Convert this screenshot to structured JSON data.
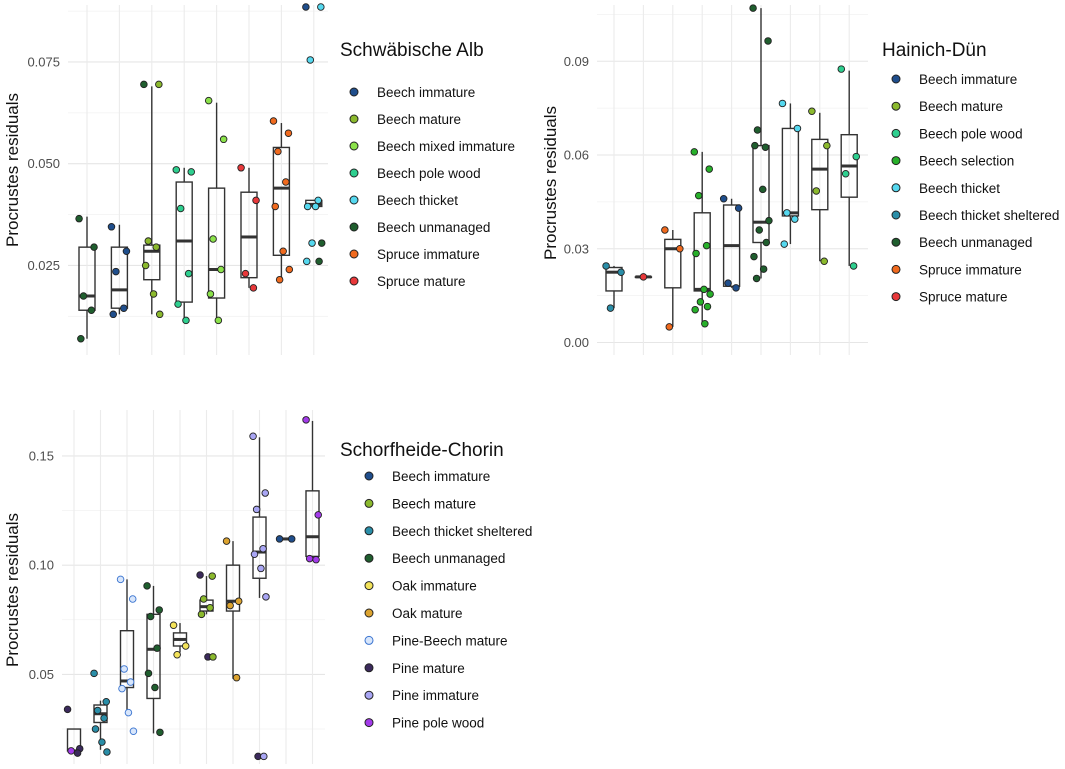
{
  "chart_data": [
    {
      "type": "box",
      "title": "Schwäbische Alb",
      "ylabel": "Procrustes residuals",
      "xlabel": "",
      "ylim": [
        0.003,
        0.089
      ],
      "yticks": [
        0.025,
        0.05,
        0.075
      ],
      "ytick_labels": [
        "0.025",
        "0.050",
        "0.075"
      ],
      "legend": [
        {
          "name": "Beech immature",
          "color": "#1f4e8c"
        },
        {
          "name": "Beech mature",
          "color": "#8bb92d"
        },
        {
          "name": "Beech mixed immature",
          "color": "#8be24a"
        },
        {
          "name": "Beech pole wood",
          "color": "#2ecf8f"
        },
        {
          "name": "Beech thicket",
          "color": "#55d8ef"
        },
        {
          "name": "Beech unmanaged",
          "color": "#1f5e2e"
        },
        {
          "name": "Spruce immature",
          "color": "#f06a1e"
        },
        {
          "name": "Spruce mature",
          "color": "#e8383a"
        }
      ],
      "boxes": [
        {
          "stats": [
            0.007,
            0.014,
            0.0175,
            0.0295,
            0.037
          ],
          "points": [
            0.0365,
            0.0295,
            0.0175,
            0.014,
            0.007
          ],
          "colors": [
            "#1f5e2e"
          ]
        },
        {
          "stats": [
            0.013,
            0.0145,
            0.019,
            0.0295,
            0.035
          ],
          "points": [
            0.0345,
            0.0285,
            0.0235,
            0.0145,
            0.013
          ],
          "colors": [
            "#1f4e8c"
          ]
        },
        {
          "stats": [
            0.013,
            0.0215,
            0.0285,
            0.03,
            0.069
          ],
          "points": [
            0.0695,
            0.0695,
            0.031,
            0.0295,
            0.025,
            0.018,
            0.013
          ],
          "colors": [
            "#1f5e2e",
            "#8bb92d",
            "#8bb92d",
            "#8bb92d",
            "#8bb92d",
            "#8bb92d",
            "#8bb92d"
          ]
        },
        {
          "stats": [
            0.0115,
            0.016,
            0.031,
            0.0455,
            0.049
          ],
          "points": [
            0.0485,
            0.048,
            0.039,
            0.023,
            0.0155,
            0.0115
          ],
          "colors": [
            "#2ecf8f"
          ]
        },
        {
          "stats": [
            0.0115,
            0.017,
            0.024,
            0.044,
            0.065
          ],
          "points": [
            0.0655,
            0.056,
            0.0315,
            0.024,
            0.018,
            0.0115
          ],
          "colors": [
            "#8be24a"
          ]
        },
        {
          "stats": [
            0.0195,
            0.022,
            0.032,
            0.043,
            0.049
          ],
          "points": [
            0.049,
            0.041,
            0.023,
            0.0195
          ],
          "colors": [
            "#e8383a"
          ]
        },
        {
          "stats": [
            0.0215,
            0.0275,
            0.044,
            0.054,
            0.06
          ],
          "points": [
            0.0605,
            0.0575,
            0.053,
            0.0455,
            0.0395,
            0.0285,
            0.024,
            0.0215
          ],
          "colors": [
            "#f06a1e"
          ]
        },
        {
          "stats": [
            0.0395,
            0.0395,
            0.04,
            0.041,
            0.041
          ],
          "points": [
            0.0885,
            0.0885,
            0.0755,
            0.041,
            0.0395,
            0.0395,
            0.0305,
            0.0305,
            0.026,
            0.026
          ],
          "colors": [
            "#1f4e8c",
            "#55d8ef",
            "#55d8ef",
            "#55d8ef",
            "#55d8ef",
            "#55d8ef",
            "#1f5e2e",
            "#55d8ef",
            "#1f5e2e",
            "#55d8ef"
          ]
        }
      ]
    },
    {
      "type": "box",
      "title": "Hainich-Dün",
      "ylabel": "Procrustes residuals",
      "xlabel": "",
      "ylim": [
        -0.004,
        0.108
      ],
      "yticks": [
        0,
        0.03,
        0.06,
        0.09
      ],
      "ytick_labels": [
        "0.00",
        "0.03",
        "0.06",
        "0.09"
      ],
      "legend": [
        {
          "name": "Beech immature",
          "color": "#1f4e8c"
        },
        {
          "name": "Beech mature",
          "color": "#8bb92d"
        },
        {
          "name": "Beech pole wood",
          "color": "#2ecf8f"
        },
        {
          "name": "Beech selection",
          "color": "#27b02a"
        },
        {
          "name": "Beech thicket",
          "color": "#55d8ef"
        },
        {
          "name": "Beech thicket sheltered",
          "color": "#2a8ea8"
        },
        {
          "name": "Beech unmanaged",
          "color": "#1f5e2e"
        },
        {
          "name": "Spruce immature",
          "color": "#f06a1e"
        },
        {
          "name": "Spruce mature",
          "color": "#e8383a"
        }
      ],
      "boxes": [
        {
          "stats": [
            0.011,
            0.0165,
            0.0225,
            0.024,
            0.0245
          ],
          "points": [
            0.0245,
            0.0225,
            0.011
          ],
          "colors": [
            "#2a8ea8"
          ]
        },
        {
          "stats": [
            0.021,
            0.021,
            0.021,
            0.021,
            0.021
          ],
          "points": [
            0.021
          ],
          "colors": [
            "#e8383a"
          ]
        },
        {
          "stats": [
            0.005,
            0.0175,
            0.03,
            0.033,
            0.036
          ],
          "points": [
            0.036,
            0.03,
            0.005
          ],
          "colors": [
            "#f06a1e"
          ]
        },
        {
          "stats": [
            0.006,
            0.0165,
            0.017,
            0.0415,
            0.061
          ],
          "points": [
            0.061,
            0.0555,
            0.047,
            0.031,
            0.0285,
            0.017,
            0.0155,
            0.013,
            0.0115,
            0.0105,
            0.006
          ],
          "colors": [
            "#27b02a"
          ]
        },
        {
          "stats": [
            0.0175,
            0.018,
            0.031,
            0.044,
            0.046
          ],
          "points": [
            0.046,
            0.043,
            0.019,
            0.0175
          ],
          "colors": [
            "#1f4e8c"
          ]
        },
        {
          "stats": [
            0.0205,
            0.032,
            0.0385,
            0.063,
            0.107
          ],
          "points": [
            0.107,
            0.0965,
            0.068,
            0.0625,
            0.063,
            0.049,
            0.039,
            0.036,
            0.032,
            0.0275,
            0.0235,
            0.0205
          ],
          "colors": [
            "#1f5e2e"
          ]
        },
        {
          "stats": [
            0.0315,
            0.0405,
            0.0415,
            0.0685,
            0.0765
          ],
          "points": [
            0.0765,
            0.0685,
            0.0415,
            0.0395,
            0.0315
          ],
          "colors": [
            "#55d8ef"
          ]
        },
        {
          "stats": [
            0.026,
            0.0425,
            0.0555,
            0.065,
            0.0735
          ],
          "points": [
            0.074,
            0.063,
            0.0485,
            0.026
          ],
          "colors": [
            "#8bb92d"
          ]
        },
        {
          "stats": [
            0.0245,
            0.0465,
            0.0565,
            0.0665,
            0.087
          ],
          "points": [
            0.0875,
            0.0595,
            0.054,
            0.0245
          ],
          "colors": [
            "#2ecf8f"
          ]
        }
      ]
    },
    {
      "type": "box",
      "title": "Schorfheide-Chorin",
      "ylabel": "Procrustes residuals",
      "xlabel": "",
      "ylim": [
        0.009,
        0.171
      ],
      "yticks": [
        0.05,
        0.1,
        0.15
      ],
      "ytick_labels": [
        "0.05",
        "0.10",
        "0.15"
      ],
      "legend": [
        {
          "name": "Beech immature",
          "color": "#1f4e8c"
        },
        {
          "name": "Beech mature",
          "color": "#8bb92d"
        },
        {
          "name": "Beech thicket sheltered",
          "color": "#2a8ea8"
        },
        {
          "name": "Beech unmanaged",
          "color": "#1f5e2e"
        },
        {
          "name": "Oak immature",
          "color": "#f3e35a"
        },
        {
          "name": "Oak mature",
          "color": "#dca32f"
        },
        {
          "name": "Pine-Beech mature",
          "color": "#d8e6fb",
          "stroke": "#3a74d0"
        },
        {
          "name": "Pine mature",
          "color": "#3b2a5c"
        },
        {
          "name": "Pine immature",
          "color": "#a9a6f4"
        },
        {
          "name": "Pine pole wood",
          "color": "#a33bea"
        }
      ],
      "boxes": [
        {
          "stats": [
            0.014,
            0.015,
            0.015,
            0.025,
            0.025
          ],
          "points": [
            0.034,
            0.016,
            0.015,
            0.014
          ],
          "colors": [
            "#3b2a5c",
            "#3b2a5c",
            "#a33bea",
            "#3b2a5c"
          ]
        },
        {
          "stats": [
            0.0155,
            0.028,
            0.032,
            0.036,
            0.038
          ],
          "points": [
            0.0505,
            0.0375,
            0.0335,
            0.03,
            0.025,
            0.019,
            0.0145
          ],
          "colors": [
            "#2a8ea8"
          ]
        },
        {
          "stats": [
            0.032,
            0.044,
            0.047,
            0.07,
            0.0935
          ],
          "points": [
            0.0935,
            0.0845,
            0.0525,
            0.0465,
            0.0435,
            0.0325,
            0.024
          ],
          "colors": [
            "#d8e6fb"
          ]
        },
        {
          "stats": [
            0.023,
            0.039,
            0.0615,
            0.0775,
            0.0905
          ],
          "points": [
            0.0905,
            0.0795,
            0.0765,
            0.062,
            0.0505,
            0.044,
            0.0235
          ],
          "colors": [
            "#1f5e2e"
          ]
        },
        {
          "stats": [
            0.06,
            0.063,
            0.066,
            0.069,
            0.0735
          ],
          "points": [
            0.0725,
            0.063,
            0.059
          ],
          "colors": [
            "#f3e35a"
          ]
        },
        {
          "stats": [
            0.0775,
            0.079,
            0.081,
            0.084,
            0.095
          ],
          "points": [
            0.0955,
            0.095,
            0.0845,
            0.0805,
            0.0775,
            0.058,
            0.058
          ],
          "colors": [
            "#3b2a5c",
            "#8bb92d",
            "#8bb92d",
            "#8bb92d",
            "#8bb92d",
            "#3b2a5c",
            "#8bb92d"
          ]
        },
        {
          "stats": [
            0.048,
            0.079,
            0.0835,
            0.1,
            0.111
          ],
          "points": [
            0.111,
            0.0835,
            0.0815,
            0.0485
          ],
          "colors": [
            "#dca32f"
          ]
        },
        {
          "stats": [
            0.085,
            0.094,
            0.106,
            0.122,
            0.1585
          ],
          "points": [
            0.159,
            0.133,
            0.1255,
            0.1075,
            0.105,
            0.0985,
            0.0855,
            0.0125,
            0.0125
          ],
          "colors": [
            "#a9a6f4",
            "#a9a6f4",
            "#a9a6f4",
            "#a9a6f4",
            "#a9a6f4",
            "#a9a6f4",
            "#a9a6f4",
            "#3b2a5c",
            "#a9a6f4"
          ]
        },
        {
          "stats": [
            0.112,
            0.112,
            0.112,
            0.112,
            0.112
          ],
          "points": [
            0.112,
            0.112
          ],
          "colors": [
            "#1f4e8c"
          ]
        },
        {
          "stats": [
            0.103,
            0.104,
            0.113,
            0.134,
            0.166
          ],
          "points": [
            0.1665,
            0.123,
            0.103,
            0.1025
          ],
          "colors": [
            "#a33bea"
          ]
        }
      ]
    }
  ]
}
